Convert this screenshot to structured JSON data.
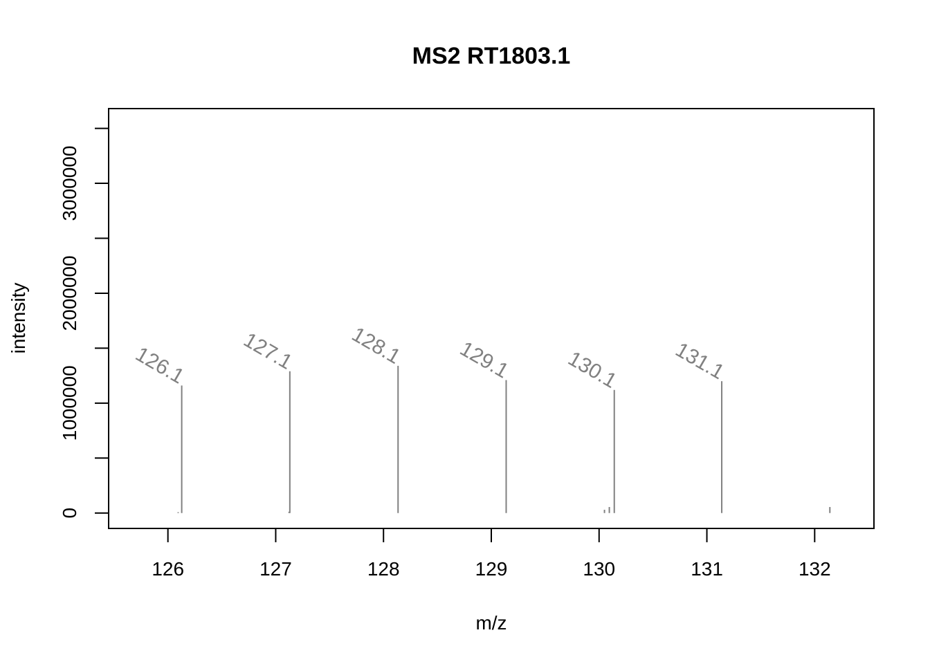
{
  "chart_data": {
    "type": "bar",
    "title": "MS2 RT1803.1",
    "xlabel": "m/z",
    "ylabel": "intensity",
    "xlim": [
      125.45,
      132.55
    ],
    "ylim": [
      -140000,
      3680000
    ],
    "x_ticks": [
      126,
      127,
      128,
      129,
      130,
      131,
      132
    ],
    "y_ticks": [
      0,
      500000,
      1000000,
      1500000,
      2000000,
      2500000,
      3000000,
      3500000
    ],
    "y_tick_labels": [
      {
        "value": 0,
        "label": "0"
      },
      {
        "value": 1000000,
        "label": "1000000"
      },
      {
        "value": 2000000,
        "label": "2000000"
      },
      {
        "value": 3000000,
        "label": "3000000"
      }
    ],
    "grid": false,
    "colors": {
      "peaks": "#808080",
      "axes": "#000000"
    },
    "peaks": [
      {
        "mz": 126.095,
        "intensity": 8000
      },
      {
        "mz": 126.128,
        "intensity": 1160000,
        "label": "126.1"
      },
      {
        "mz": 127.124,
        "intensity": 12000
      },
      {
        "mz": 127.131,
        "intensity": 1290000,
        "label": "127.1"
      },
      {
        "mz": 128.135,
        "intensity": 1340000,
        "label": "128.1"
      },
      {
        "mz": 129.138,
        "intensity": 1210000,
        "label": "129.1"
      },
      {
        "mz": 130.05,
        "intensity": 30000
      },
      {
        "mz": 130.095,
        "intensity": 55000
      },
      {
        "mz": 130.141,
        "intensity": 1120000,
        "label": "130.1"
      },
      {
        "mz": 131.138,
        "intensity": 1200000,
        "label": "131.1"
      },
      {
        "mz": 132.141,
        "intensity": 55000
      }
    ]
  }
}
